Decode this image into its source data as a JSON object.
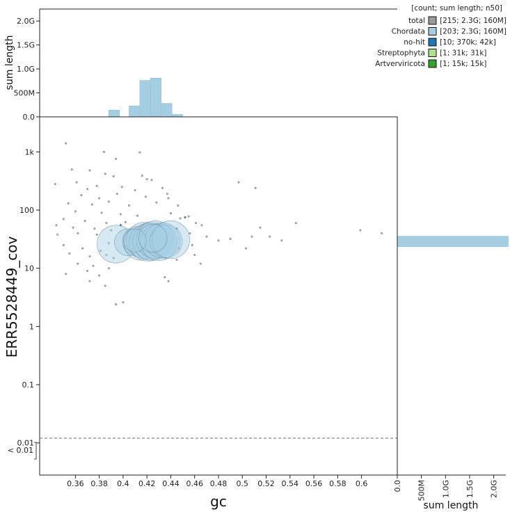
{
  "chart_data": {
    "type": "scatter",
    "xlabel": "gc",
    "ylabel": "ERR5528449_cov",
    "y_scale": "log",
    "xlim": [
      0.33,
      0.63
    ],
    "ylim": [
      0.0028,
      4000
    ],
    "x_ticks": [
      "0.36",
      "0.38",
      "0.4",
      "0.42",
      "0.44",
      "0.46",
      "0.48",
      "0.5",
      "0.52",
      "0.54",
      "0.56",
      "0.58",
      "0.6"
    ],
    "x_tick_values": [
      0.36,
      0.38,
      0.4,
      0.42,
      0.44,
      0.46,
      0.48,
      0.5,
      0.52,
      0.54,
      0.56,
      0.58,
      0.6
    ],
    "y_ticks": [
      "1k",
      "100",
      "10",
      "1",
      "0.1",
      "0.01"
    ],
    "y_tick_values": [
      1000,
      100,
      10,
      1,
      0.1,
      0.01
    ],
    "below_min_label": "< 0.01",
    "below_min_value": 0.0075,
    "legend_header": "[count; sum length; n50]",
    "legend": [
      {
        "name": "total",
        "stats": "[215; 2.3G; 160M]",
        "color": "#999999"
      },
      {
        "name": "Chordata",
        "stats": "[203; 2.3G; 160M]",
        "color": "#a6cee3"
      },
      {
        "name": "no-hit",
        "stats": "[10; 370k; 42k]",
        "color": "#1f78b4"
      },
      {
        "name": "Streptophyta",
        "stats": "[1; 31k; 31k]",
        "color": "#b2df8a"
      },
      {
        "name": "Artverviricota",
        "stats": "[1; 15k; 15k]",
        "color": "#33a02c"
      }
    ],
    "top_hist": {
      "ylabel": "sum length",
      "y_ticks": [
        "0.0",
        "500M",
        "1.0G",
        "1.5G",
        "2.0G"
      ],
      "y_tick_values": [
        0,
        0.5,
        1.0,
        1.5,
        2.0
      ],
      "ylim": [
        0,
        2.25
      ],
      "unit": "G",
      "bins": [
        {
          "x0": 0.388,
          "x1": 0.397,
          "value": 0.14
        },
        {
          "x0": 0.405,
          "x1": 0.414,
          "value": 0.23
        },
        {
          "x0": 0.414,
          "x1": 0.423,
          "value": 0.76
        },
        {
          "x0": 0.423,
          "x1": 0.432,
          "value": 0.81
        },
        {
          "x0": 0.432,
          "x1": 0.441,
          "value": 0.28
        },
        {
          "x0": 0.441,
          "x1": 0.45,
          "value": 0.05
        }
      ]
    },
    "right_hist": {
      "xlabel": "sum length",
      "x_ticks": [
        "0.0",
        "500M",
        "1.0G",
        "1.5G",
        "2.0G"
      ],
      "x_tick_values": [
        0,
        0.5,
        1.0,
        1.5,
        2.0
      ],
      "xlim": [
        0,
        2.25
      ],
      "unit": "G",
      "bins": [
        {
          "y0": 23.5,
          "y1": 35.5,
          "value": 2.3
        }
      ]
    },
    "big_points": [
      {
        "gc": 0.394,
        "cov": 26,
        "size_m": 160
      },
      {
        "gc": 0.404,
        "cov": 28,
        "size_m": 80
      },
      {
        "gc": 0.412,
        "cov": 29,
        "size_m": 100
      },
      {
        "gc": 0.415,
        "cov": 27,
        "size_m": 130
      },
      {
        "gc": 0.418,
        "cov": 30,
        "size_m": 150
      },
      {
        "gc": 0.421,
        "cov": 28,
        "size_m": 160
      },
      {
        "gc": 0.424,
        "cov": 29,
        "size_m": 160
      },
      {
        "gc": 0.427,
        "cov": 31,
        "size_m": 160
      },
      {
        "gc": 0.43,
        "cov": 28,
        "size_m": 150
      },
      {
        "gc": 0.433,
        "cov": 30,
        "size_m": 140
      },
      {
        "gc": 0.436,
        "cov": 29,
        "size_m": 120
      },
      {
        "gc": 0.44,
        "cov": 31,
        "size_m": 160
      },
      {
        "gc": 0.41,
        "cov": 30,
        "size_m": 60
      },
      {
        "gc": 0.425,
        "cov": 33,
        "size_m": 90
      }
    ],
    "small_points": [
      {
        "gc": 0.352,
        "cov": 1400,
        "c": "#999999"
      },
      {
        "gc": 0.384,
        "cov": 1000,
        "c": "#999999"
      },
      {
        "gc": 0.394,
        "cov": 760,
        "c": "#999999"
      },
      {
        "gc": 0.414,
        "cov": 980,
        "c": "#999999"
      },
      {
        "gc": 0.357,
        "cov": 500,
        "c": "#999999"
      },
      {
        "gc": 0.372,
        "cov": 480,
        "c": "#999999"
      },
      {
        "gc": 0.385,
        "cov": 420,
        "c": "#999999"
      },
      {
        "gc": 0.392,
        "cov": 380,
        "c": "#999999"
      },
      {
        "gc": 0.416,
        "cov": 390,
        "c": "#999999"
      },
      {
        "gc": 0.424,
        "cov": 330,
        "c": "#999999"
      },
      {
        "gc": 0.343,
        "cov": 280,
        "c": "#999999"
      },
      {
        "gc": 0.361,
        "cov": 300,
        "c": "#999999"
      },
      {
        "gc": 0.37,
        "cov": 230,
        "c": "#999999"
      },
      {
        "gc": 0.378,
        "cov": 260,
        "c": "#999999"
      },
      {
        "gc": 0.399,
        "cov": 250,
        "c": "#999999"
      },
      {
        "gc": 0.41,
        "cov": 220,
        "c": "#999999"
      },
      {
        "gc": 0.433,
        "cov": 240,
        "c": "#999999"
      },
      {
        "gc": 0.365,
        "cov": 180,
        "c": "#999999"
      },
      {
        "gc": 0.38,
        "cov": 160,
        "c": "#999999"
      },
      {
        "gc": 0.395,
        "cov": 190,
        "c": "#999999"
      },
      {
        "gc": 0.419,
        "cov": 170,
        "c": "#999999"
      },
      {
        "gc": 0.438,
        "cov": 160,
        "c": "#999999"
      },
      {
        "gc": 0.354,
        "cov": 130,
        "c": "#999999"
      },
      {
        "gc": 0.374,
        "cov": 125,
        "c": "#999999"
      },
      {
        "gc": 0.388,
        "cov": 140,
        "c": "#999999"
      },
      {
        "gc": 0.405,
        "cov": 120,
        "c": "#999999"
      },
      {
        "gc": 0.428,
        "cov": 135,
        "c": "#999999"
      },
      {
        "gc": 0.446,
        "cov": 120,
        "c": "#999999"
      },
      {
        "gc": 0.36,
        "cov": 95,
        "c": "#999999"
      },
      {
        "gc": 0.382,
        "cov": 90,
        "c": "#999999"
      },
      {
        "gc": 0.398,
        "cov": 85,
        "c": "#999999"
      },
      {
        "gc": 0.412,
        "cov": 80,
        "c": "#999999"
      },
      {
        "gc": 0.44,
        "cov": 88,
        "c": "#999999"
      },
      {
        "gc": 0.455,
        "cov": 78,
        "c": "#999999"
      },
      {
        "gc": 0.35,
        "cov": 70,
        "c": "#999999"
      },
      {
        "gc": 0.368,
        "cov": 65,
        "c": "#999999"
      },
      {
        "gc": 0.386,
        "cov": 60,
        "c": "#999999"
      },
      {
        "gc": 0.402,
        "cov": 62,
        "c": "#999999"
      },
      {
        "gc": 0.448,
        "cov": 72,
        "c": "#999999"
      },
      {
        "gc": 0.461,
        "cov": 60,
        "c": "#999999"
      },
      {
        "gc": 0.466,
        "cov": 55,
        "c": "#999999"
      },
      {
        "gc": 0.344,
        "cov": 55,
        "c": "#999999"
      },
      {
        "gc": 0.358,
        "cov": 50,
        "c": "#999999"
      },
      {
        "gc": 0.376,
        "cov": 48,
        "c": "#999999"
      },
      {
        "gc": 0.39,
        "cov": 45,
        "c": "#999999"
      },
      {
        "gc": 0.362,
        "cov": 40,
        "c": "#999999"
      },
      {
        "gc": 0.378,
        "cov": 38,
        "c": "#999999"
      },
      {
        "gc": 0.456,
        "cov": 40,
        "c": "#999999"
      },
      {
        "gc": 0.47,
        "cov": 35,
        "c": "#999999"
      },
      {
        "gc": 0.48,
        "cov": 30,
        "c": "#999999"
      },
      {
        "gc": 0.49,
        "cov": 32,
        "c": "#999999"
      },
      {
        "gc": 0.35,
        "cov": 25,
        "c": "#999999"
      },
      {
        "gc": 0.366,
        "cov": 22,
        "c": "#999999"
      },
      {
        "gc": 0.381,
        "cov": 20,
        "c": "#999999"
      },
      {
        "gc": 0.447,
        "cov": 22,
        "c": "#999999"
      },
      {
        "gc": 0.458,
        "cov": 25,
        "c": "#999999"
      },
      {
        "gc": 0.46,
        "cov": 17,
        "c": "#999999"
      },
      {
        "gc": 0.355,
        "cov": 18,
        "c": "#999999"
      },
      {
        "gc": 0.372,
        "cov": 16,
        "c": "#999999"
      },
      {
        "gc": 0.392,
        "cov": 15,
        "c": "#999999"
      },
      {
        "gc": 0.436,
        "cov": 15,
        "c": "#999999"
      },
      {
        "gc": 0.445,
        "cov": 14,
        "c": "#999999"
      },
      {
        "gc": 0.465,
        "cov": 12,
        "c": "#999999"
      },
      {
        "gc": 0.362,
        "cov": 12,
        "c": "#999999"
      },
      {
        "gc": 0.375,
        "cov": 11,
        "c": "#999999"
      },
      {
        "gc": 0.388,
        "cov": 10,
        "c": "#999999"
      },
      {
        "gc": 0.352,
        "cov": 8,
        "c": "#999999"
      },
      {
        "gc": 0.37,
        "cov": 9,
        "c": "#999999"
      },
      {
        "gc": 0.38,
        "cov": 7.5,
        "c": "#999999"
      },
      {
        "gc": 0.435,
        "cov": 7,
        "c": "#999999"
      },
      {
        "gc": 0.438,
        "cov": 6,
        "c": "#999999"
      },
      {
        "gc": 0.372,
        "cov": 6,
        "c": "#999999"
      },
      {
        "gc": 0.385,
        "cov": 5,
        "c": "#999999"
      },
      {
        "gc": 0.394,
        "cov": 2.4,
        "c": "#999999"
      },
      {
        "gc": 0.4,
        "cov": 2.6,
        "c": "#999999"
      },
      {
        "gc": 0.497,
        "cov": 300,
        "c": "#999999"
      },
      {
        "gc": 0.511,
        "cov": 240,
        "c": "#999999"
      },
      {
        "gc": 0.508,
        "cov": 35,
        "c": "#999999"
      },
      {
        "gc": 0.515,
        "cov": 50,
        "c": "#999999"
      },
      {
        "gc": 0.523,
        "cov": 35,
        "c": "#999999"
      },
      {
        "gc": 0.533,
        "cov": 30,
        "c": "#999999"
      },
      {
        "gc": 0.503,
        "cov": 22,
        "c": "#999999"
      },
      {
        "gc": 0.545,
        "cov": 60,
        "c": "#999999"
      },
      {
        "gc": 0.599,
        "cov": 45,
        "c": "#999999"
      },
      {
        "gc": 0.617,
        "cov": 40,
        "c": "#999999"
      },
      {
        "gc": 0.345,
        "cov": 38,
        "c": "#a6cee3"
      },
      {
        "gc": 0.42,
        "cov": 340,
        "c": "#a6cee3"
      },
      {
        "gc": 0.437,
        "cov": 190,
        "c": "#a6cee3"
      },
      {
        "gc": 0.386,
        "cov": 17,
        "c": "#a6cee3"
      },
      {
        "gc": 0.388,
        "cov": 27,
        "c": "#a6cee3"
      },
      {
        "gc": 0.452,
        "cov": 75,
        "c": "#1f78b4"
      },
      {
        "gc": 0.445,
        "cov": 48,
        "c": "#1f78b4"
      },
      {
        "gc": 0.404,
        "cov": 42,
        "c": "#1f78b4"
      },
      {
        "gc": 0.398,
        "cov": 55,
        "c": "#1f78b4"
      },
      {
        "gc": 0.417,
        "cov": 36,
        "c": "#b2df8a"
      },
      {
        "gc": 0.406,
        "cov": 33,
        "c": "#33a02c"
      }
    ]
  }
}
